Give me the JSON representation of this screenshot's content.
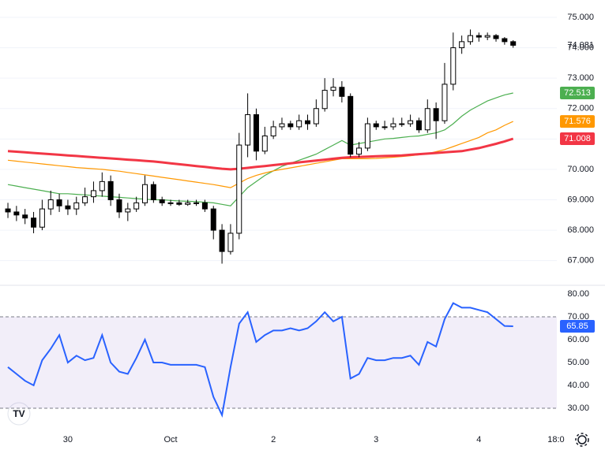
{
  "chart_data": [
    {
      "type": "candlestick",
      "x": [
        0,
        2,
        4,
        6,
        8,
        10,
        12,
        14,
        16,
        18,
        20,
        22,
        24,
        26,
        28,
        30,
        32,
        34,
        36,
        38,
        40,
        42,
        44,
        46,
        48,
        50,
        52,
        54,
        56,
        58,
        60,
        62,
        64,
        66,
        68,
        70,
        72,
        74,
        76,
        78,
        80,
        82,
        84,
        86,
        88,
        90,
        92,
        94,
        96,
        98,
        100,
        102,
        104,
        106,
        108,
        110,
        112,
        114,
        116,
        118
      ],
      "open": [
        68.7,
        68.6,
        68.5,
        68.4,
        68.1,
        68.7,
        69.0,
        68.8,
        68.7,
        68.9,
        69.1,
        69.3,
        69.6,
        69.0,
        68.6,
        68.7,
        68.9,
        69.5,
        69.0,
        68.9,
        68.9,
        68.85,
        68.9,
        68.9,
        68.7,
        68.0,
        67.3,
        67.9,
        70.8,
        71.8,
        70.6,
        71.1,
        71.4,
        71.5,
        71.4,
        71.6,
        71.5,
        72.0,
        72.6,
        72.7,
        72.4,
        70.5,
        70.7,
        71.5,
        71.4,
        71.4,
        71.5,
        71.5,
        71.6,
        71.3,
        72.0,
        71.6,
        72.8,
        74.0,
        74.2,
        74.4,
        74.35,
        74.4,
        74.3,
        74.2
      ],
      "high": [
        68.9,
        68.8,
        68.7,
        68.6,
        69.0,
        69.3,
        69.2,
        69.0,
        69.1,
        69.4,
        69.6,
        69.9,
        69.8,
        69.2,
        68.9,
        69.1,
        69.8,
        69.6,
        69.1,
        69.0,
        69.0,
        69.0,
        69.0,
        69.0,
        68.8,
        68.2,
        68.2,
        71.2,
        72.5,
        72.0,
        71.4,
        71.6,
        71.7,
        71.6,
        71.8,
        71.8,
        72.3,
        73.0,
        73.0,
        72.9,
        72.5,
        70.9,
        71.7,
        71.6,
        71.6,
        71.7,
        71.7,
        71.8,
        71.7,
        72.3,
        72.2,
        73.5,
        74.5,
        74.4,
        74.6,
        74.5,
        74.5,
        74.45,
        74.35,
        74.25
      ],
      "low": [
        68.4,
        68.3,
        68.2,
        67.9,
        68.0,
        68.5,
        68.6,
        68.5,
        68.5,
        68.8,
        68.9,
        69.1,
        68.8,
        68.4,
        68.3,
        68.6,
        68.8,
        68.9,
        68.8,
        68.8,
        68.8,
        68.8,
        68.8,
        68.6,
        67.7,
        66.9,
        67.2,
        67.7,
        70.4,
        70.3,
        70.5,
        71.0,
        71.3,
        71.3,
        71.3,
        71.3,
        71.4,
        71.9,
        72.4,
        72.2,
        70.4,
        70.4,
        70.6,
        71.3,
        71.3,
        71.3,
        71.4,
        71.4,
        71.2,
        71.2,
        71.0,
        71.5,
        72.6,
        73.8,
        74.1,
        74.2,
        74.25,
        74.2,
        74.1,
        74.0
      ],
      "close": [
        68.6,
        68.5,
        68.4,
        68.1,
        68.7,
        69.0,
        68.8,
        68.7,
        68.9,
        69.1,
        69.3,
        69.6,
        69.0,
        68.6,
        68.7,
        68.9,
        69.5,
        69.0,
        68.9,
        68.9,
        68.85,
        68.9,
        68.9,
        68.7,
        68.0,
        67.3,
        67.9,
        70.8,
        71.8,
        70.6,
        71.1,
        71.4,
        71.5,
        71.4,
        71.6,
        71.5,
        72.0,
        72.6,
        72.7,
        72.4,
        70.5,
        70.7,
        71.5,
        71.4,
        71.4,
        71.5,
        71.5,
        71.6,
        71.3,
        72.0,
        71.6,
        72.8,
        74.0,
        74.2,
        74.4,
        74.35,
        74.4,
        74.3,
        74.2,
        74.081
      ],
      "up_color": "#ffffff",
      "down_color": "#000000",
      "edge_color": "#000000",
      "series": [
        {
          "color": "#4caf50",
          "values": [
            69.5,
            69.45,
            69.4,
            69.35,
            69.3,
            69.25,
            69.2,
            69.2,
            69.18,
            69.16,
            69.14,
            69.12,
            69.1,
            69.08,
            69.06,
            69.04,
            69.02,
            69.0,
            69.0,
            68.98,
            68.96,
            68.95,
            68.94,
            68.92,
            68.9,
            68.85,
            68.8,
            69.1,
            69.4,
            69.6,
            69.8,
            69.95,
            70.1,
            70.2,
            70.3,
            70.4,
            70.5,
            70.65,
            70.8,
            70.95,
            70.8,
            70.85,
            70.9,
            70.95,
            71.0,
            71.02,
            71.05,
            71.08,
            71.1,
            71.15,
            71.2,
            71.3,
            71.5,
            71.75,
            71.95,
            72.1,
            72.25,
            72.35,
            72.45,
            72.513
          ]
        },
        {
          "color": "#ff9800",
          "values": [
            70.3,
            70.27,
            70.24,
            70.21,
            70.18,
            70.15,
            70.12,
            70.09,
            70.06,
            70.04,
            70.02,
            70.0,
            69.97,
            69.94,
            69.9,
            69.86,
            69.82,
            69.78,
            69.74,
            69.7,
            69.66,
            69.62,
            69.58,
            69.54,
            69.5,
            69.45,
            69.4,
            69.55,
            69.7,
            69.8,
            69.88,
            69.95,
            70.0,
            70.05,
            70.1,
            70.15,
            70.2,
            70.25,
            70.3,
            70.35,
            70.35,
            70.35,
            70.35,
            70.36,
            70.38,
            70.4,
            70.42,
            70.45,
            70.48,
            70.52,
            70.58,
            70.65,
            70.75,
            70.85,
            70.95,
            71.05,
            71.2,
            71.3,
            71.45,
            71.576
          ]
        },
        {
          "color": "#f23645",
          "values": [
            70.6,
            70.58,
            70.56,
            70.54,
            70.52,
            70.5,
            70.48,
            70.46,
            70.44,
            70.42,
            70.4,
            70.38,
            70.36,
            70.34,
            70.32,
            70.3,
            70.28,
            70.26,
            70.23,
            70.2,
            70.17,
            70.14,
            70.11,
            70.08,
            70.05,
            70.02,
            70.0,
            70.02,
            70.05,
            70.08,
            70.11,
            70.14,
            70.17,
            70.2,
            70.23,
            70.26,
            70.29,
            70.32,
            70.35,
            70.38,
            70.4,
            70.41,
            70.42,
            70.43,
            70.44,
            70.45,
            70.46,
            70.48,
            70.5,
            70.52,
            70.54,
            70.56,
            70.58,
            70.6,
            70.65,
            70.7,
            70.77,
            70.84,
            70.92,
            71.008
          ]
        }
      ],
      "xlim": [
        -1.85,
        128.2
      ],
      "ylim": [
        66.24,
        75.57
      ],
      "yticks": [
        {
          "value": 67,
          "label": "67.000"
        },
        {
          "value": 68,
          "label": "68.000"
        },
        {
          "value": 69,
          "label": "69.000"
        },
        {
          "value": 70,
          "label": "70.000"
        },
        {
          "value": 71,
          "label": "71.000"
        },
        {
          "value": 72,
          "label": "72.000"
        },
        {
          "value": 73,
          "label": "73.000"
        },
        {
          "value": 74,
          "label": "74.000"
        },
        {
          "value": 75,
          "label": "75.000"
        }
      ],
      "xticks": [
        {
          "value": 14,
          "label": "30"
        },
        {
          "value": 38,
          "label": "Oct"
        },
        {
          "value": 62,
          "label": "2"
        },
        {
          "value": 86,
          "label": "3"
        },
        {
          "value": 110,
          "label": "4"
        },
        {
          "value": 128,
          "label": "18:0"
        }
      ],
      "grid": true
    },
    {
      "type": "line",
      "x": [
        0,
        2,
        4,
        6,
        8,
        10,
        12,
        14,
        16,
        18,
        20,
        22,
        24,
        26,
        28,
        30,
        32,
        34,
        36,
        38,
        40,
        42,
        44,
        46,
        48,
        50,
        52,
        54,
        56,
        58,
        60,
        62,
        64,
        66,
        68,
        70,
        72,
        74,
        76,
        78,
        80,
        82,
        84,
        86,
        88,
        90,
        92,
        94,
        96,
        98,
        100,
        102,
        104,
        106,
        108,
        110,
        112,
        114,
        116,
        118
      ],
      "series": [
        {
          "color": "#2962ff",
          "values": [
            48,
            45,
            42,
            40,
            51,
            56,
            62,
            50,
            53,
            51,
            52,
            62,
            50,
            46,
            45,
            52,
            60,
            50,
            50,
            49,
            49,
            49,
            49,
            48,
            35,
            27,
            48,
            67,
            72,
            59,
            62,
            64,
            64,
            65,
            64,
            65,
            68,
            72,
            68,
            70,
            43,
            45,
            52,
            51,
            51,
            52,
            52,
            53,
            49,
            59,
            57,
            69,
            76,
            74,
            74,
            73,
            72,
            69,
            66,
            65.85
          ]
        }
      ],
      "xlim": [
        -1.85,
        128.2
      ],
      "ylim": [
        22.4,
        83.8
      ],
      "yticks": [
        {
          "value": 30,
          "label": "30.00"
        },
        {
          "value": 40,
          "label": "40.00"
        },
        {
          "value": 50,
          "label": "50.00"
        },
        {
          "value": 60,
          "label": "60.00"
        },
        {
          "value": 70,
          "label": "70.00"
        },
        {
          "value": 80,
          "label": "80.00"
        }
      ],
      "band": [
        30,
        70
      ],
      "band_color": "#7e57c2"
    }
  ]
}
